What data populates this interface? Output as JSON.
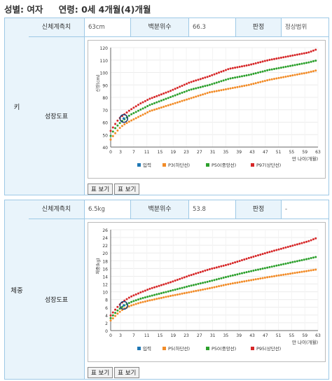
{
  "header": {
    "sex": "성별: 여자",
    "age": "연령: 0세 4개월(4)개월"
  },
  "height": {
    "category": "키",
    "measure_label": "신체계측치",
    "measure_value": "63cm",
    "percentile_label": "백분위수",
    "percentile_value": "66.3",
    "judge_label": "판정",
    "judge_value": "정상범위",
    "chart_label": "성장도표",
    "btn1": "표 보기",
    "btn2": "표 보기"
  },
  "weight": {
    "category": "체중",
    "measure_label": "신체계측치",
    "measure_value": "6.5kg",
    "percentile_label": "백분위수",
    "percentile_value": "53.8",
    "judge_label": "판정",
    "judge_value": "-",
    "chart_label": "성장도표",
    "btn1": "표 보기",
    "btn2": "표 보기"
  },
  "chart_data": [
    {
      "type": "line",
      "ylabel": "신장(cm)",
      "xlabel": "만 나이(개월)",
      "xlim": [
        0,
        63
      ],
      "ylim": [
        40,
        120
      ],
      "xticks": [
        0,
        3,
        7,
        11,
        15,
        19,
        23,
        27,
        31,
        35,
        39,
        43,
        47,
        51,
        55,
        59,
        63
      ],
      "yticks": [
        40,
        50,
        60,
        70,
        80,
        90,
        100,
        110,
        120
      ],
      "legend": [
        "입력",
        "P3(하단선)",
        "P50(중앙선)",
        "P97(상단선)"
      ],
      "colors": {
        "input": "#1f77b4",
        "low": "#f28c28",
        "mid": "#2ca02c",
        "high": "#d62728"
      },
      "input_point": {
        "x": 4,
        "y": 63
      },
      "series": [
        {
          "name": "P3(하단선)",
          "x": [
            0,
            1,
            2,
            3,
            4,
            6,
            9,
            12,
            18,
            24,
            30,
            36,
            42,
            48,
            54,
            60,
            63
          ],
          "y": [
            46,
            50,
            53,
            56,
            58,
            61,
            65,
            69,
            74,
            79,
            84,
            87,
            90,
            94,
            97,
            100,
            102
          ]
        },
        {
          "name": "P50(중앙선)",
          "x": [
            0,
            1,
            2,
            3,
            4,
            6,
            9,
            12,
            18,
            24,
            30,
            36,
            42,
            48,
            54,
            60,
            63
          ],
          "y": [
            49,
            54,
            57,
            60,
            62,
            66,
            70,
            74,
            80,
            86,
            90,
            95,
            98,
            102,
            105,
            108,
            110
          ]
        },
        {
          "name": "P97(상단선)",
          "x": [
            0,
            1,
            2,
            3,
            4,
            6,
            9,
            12,
            18,
            24,
            30,
            36,
            42,
            48,
            54,
            60,
            63
          ],
          "y": [
            53,
            57,
            61,
            64,
            66,
            70,
            75,
            79,
            85,
            92,
            97,
            103,
            106,
            110,
            113,
            116,
            119
          ]
        }
      ]
    },
    {
      "type": "line",
      "ylabel": "체중(kg)",
      "xlabel": "만 나이(개월)",
      "xlim": [
        0,
        63
      ],
      "ylim": [
        0,
        26
      ],
      "xticks": [
        0,
        3,
        7,
        11,
        15,
        19,
        23,
        27,
        31,
        35,
        39,
        43,
        47,
        51,
        55,
        59,
        63
      ],
      "yticks": [
        0,
        2,
        4,
        6,
        8,
        10,
        12,
        14,
        16,
        18,
        20,
        22,
        24,
        26
      ],
      "legend": [
        "입력",
        "P5(하단선)",
        "P50(중앙선)",
        "P95(상단선)"
      ],
      "colors": {
        "input": "#1f77b4",
        "low": "#f28c28",
        "mid": "#2ca02c",
        "high": "#d62728"
      },
      "input_point": {
        "x": 4,
        "y": 6.5
      },
      "series": [
        {
          "name": "P5(하단선)",
          "x": [
            0,
            1,
            2,
            3,
            4,
            6,
            9,
            12,
            18,
            24,
            30,
            36,
            42,
            48,
            54,
            60,
            63
          ],
          "y": [
            2.6,
            3.4,
            4.3,
            5.0,
            5.6,
            6.4,
            7.2,
            7.8,
            8.9,
            9.9,
            10.9,
            12.0,
            12.9,
            13.8,
            14.6,
            15.4,
            15.8
          ]
        },
        {
          "name": "P50(중앙선)",
          "x": [
            0,
            1,
            2,
            3,
            4,
            6,
            9,
            12,
            18,
            24,
            30,
            36,
            42,
            48,
            54,
            60,
            63
          ],
          "y": [
            3.2,
            4.2,
            5.1,
            5.8,
            6.4,
            7.3,
            8.2,
            8.9,
            10.2,
            11.5,
            12.7,
            14.0,
            15.2,
            16.3,
            17.4,
            18.5,
            19.1
          ]
        },
        {
          "name": "P95(상단선)",
          "x": [
            0,
            1,
            2,
            3,
            4,
            6,
            9,
            12,
            18,
            24,
            30,
            36,
            42,
            48,
            54,
            60,
            63
          ],
          "y": [
            3.9,
            5.0,
            6.0,
            6.9,
            7.6,
            8.7,
            9.8,
            10.8,
            12.4,
            14.2,
            15.8,
            17.1,
            18.7,
            20.2,
            21.6,
            23.0,
            24.0
          ]
        }
      ]
    }
  ]
}
